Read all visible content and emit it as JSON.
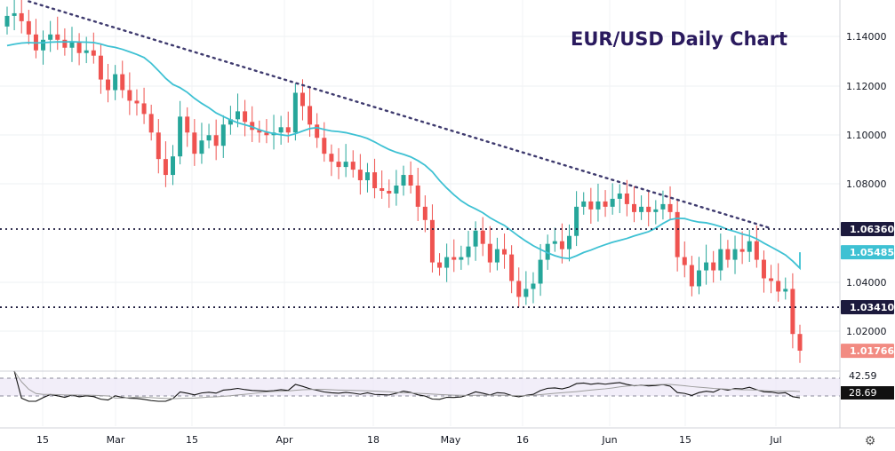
{
  "chart_data": {
    "type": "candlestick",
    "title": "EUR/USD Daily Chart",
    "ylim": [
      1.01,
      1.15
    ],
    "y_ticks": [
      "1.14000",
      "1.12000",
      "1.10000",
      "1.08000",
      "1.04000",
      "1.02000"
    ],
    "x_ticks": [
      "15",
      "Mar",
      "15",
      "Apr",
      "18",
      "May",
      "16",
      "Jun",
      "15",
      "Jul"
    ],
    "price_labels": [
      {
        "label": "1.06360",
        "value": 1.0636,
        "color": "#1c1a3d"
      },
      {
        "label": "1.05485",
        "value": 1.05485,
        "color": "#3ec1d3"
      },
      {
        "label": "1.03410",
        "value": 1.0341,
        "color": "#1c1a3d"
      },
      {
        "label": "1.01766",
        "value": 1.01766,
        "color": "#f28b82"
      }
    ],
    "horizontal_lines": [
      1.0636,
      1.0341
    ],
    "trendline": {
      "from": 1.1495,
      "to": 1.064
    },
    "rsi": {
      "ylim": [
        0,
        100
      ],
      "labels": [
        "42.59",
        "28.69"
      ],
      "band": [
        30,
        70
      ]
    },
    "colors": {
      "up": "#26a69a",
      "down": "#ef5350",
      "ma": "#3ec1d3",
      "trend": "#3e3a6e",
      "rsi": "#111111",
      "rsi_signal": "#9e9e9e"
    },
    "closes": [
      1.144,
      1.145,
      1.142,
      1.137,
      1.131,
      1.135,
      1.137,
      1.135,
      1.132,
      1.134,
      1.13,
      1.131,
      1.129,
      1.12,
      1.116,
      1.122,
      1.116,
      1.112,
      1.111,
      1.107,
      1.1,
      1.09,
      1.084,
      1.091,
      1.106,
      1.1,
      1.092,
      1.097,
      1.099,
      1.095,
      1.103,
      1.105,
      1.108,
      1.104,
      1.101,
      1.1,
      1.099,
      1.1,
      1.102,
      1.1,
      1.115,
      1.11,
      1.103,
      1.098,
      1.092,
      1.089,
      1.087,
      1.089,
      1.086,
      1.082,
      1.085,
      1.079,
      1.078,
      1.077,
      1.08,
      1.084,
      1.08,
      1.072,
      1.067,
      1.051,
      1.049,
      1.053,
      1.052,
      1.053,
      1.057,
      1.063,
      1.058,
      1.051,
      1.056,
      1.054,
      1.044,
      1.038,
      1.041,
      1.043,
      1.052,
      1.058,
      1.059,
      1.056,
      1.061,
      1.072,
      1.074,
      1.071,
      1.074,
      1.072,
      1.075,
      1.077,
      1.073,
      1.07,
      1.072,
      1.07,
      1.071,
      1.073,
      1.07,
      1.053,
      1.05,
      1.042,
      1.048,
      1.051,
      1.048,
      1.056,
      1.052,
      1.056,
      1.055,
      1.059,
      1.052,
      1.045,
      1.044,
      1.04,
      1.041,
      1.024,
      1.0177
    ]
  }
}
